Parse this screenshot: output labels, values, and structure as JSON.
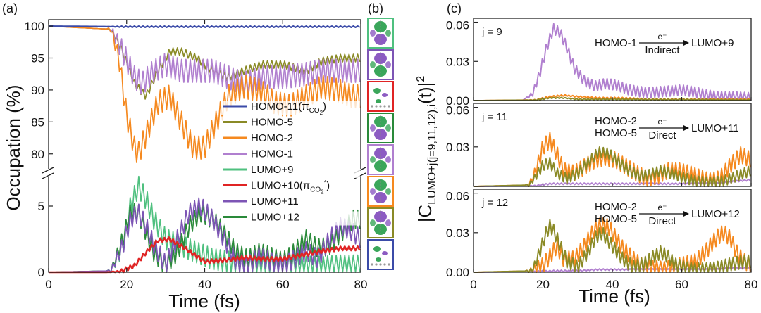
{
  "panel_labels": {
    "a": "(a)",
    "b": "(b)",
    "c": "(c)"
  },
  "colors": {
    "homo11": "#3b4ba8",
    "homo5": "#8a8a26",
    "homo2": "#f5891f",
    "homo1": "#b07fcf",
    "lumo9": "#4fc07f",
    "lumo10": "#e02424",
    "lumo11": "#7d55b5",
    "lumo12": "#2a8a3a"
  },
  "panel_a": {
    "xlabel": "Time (fs)",
    "ylabel": "Occupation (%)",
    "xticks": [
      "0",
      "20",
      "40",
      "60",
      "80"
    ],
    "yticks_top": [
      "80",
      "85",
      "90",
      "95",
      "100"
    ],
    "yticks_bottom": [
      "0",
      "5"
    ]
  },
  "legend": [
    {
      "key": "homo11",
      "label": "HOMO-11(π",
      "sub": "CO",
      "sub2": "2",
      "close": ")"
    },
    {
      "key": "homo5",
      "label": "HOMO-5"
    },
    {
      "key": "homo2",
      "label": "HOMO-2"
    },
    {
      "key": "homo1",
      "label": "HOMO-1"
    },
    {
      "key": "lumo9",
      "label": "LUMO+9"
    },
    {
      "key": "lumo10",
      "label": "LUMO+10(π",
      "sub": "CO",
      "sub2": "2",
      "sup": "*",
      "close": ")"
    },
    {
      "key": "lumo11",
      "label": "LUMO+11"
    },
    {
      "key": "lumo12",
      "label": "LUMO+12"
    }
  ],
  "panel_c": {
    "xlabel": "Time (fs)",
    "ylabel_prefix": "|C",
    "ylabel_sub": "LUMO+j(j=9,11,12),i",
    "ylabel_suffix": "(t)|",
    "ylabel_sup": "2",
    "xticks": [
      "0",
      "20",
      "40",
      "60",
      "80"
    ],
    "yticks": [
      "0.00",
      "0.03",
      "0.06"
    ],
    "subpanels": [
      {
        "j_label": "j = 9",
        "from": [
          "HOMO-1"
        ],
        "electron": "e⁻",
        "mechanism": "Indirect",
        "to": "LUMO+9"
      },
      {
        "j_label": "j = 11",
        "from": [
          "HOMO-2",
          "HOMO-5"
        ],
        "electron": "e⁻",
        "mechanism": "Direct",
        "to": "LUMO+11"
      },
      {
        "j_label": "j = 12",
        "from": [
          "HOMO-2",
          "HOMO-5"
        ],
        "electron": "e⁻",
        "mechanism": "Direct",
        "to": "LUMO+12"
      }
    ]
  },
  "panel_b": {
    "boxes": [
      {
        "name": "orbital-lumo9",
        "border": "#4fc07f",
        "lobe1": "#3aa65a",
        "lobe2": "#8c5bc2"
      },
      {
        "name": "orbital-lumo11",
        "border": "#7d55b5",
        "lobe1": "#8c5bc2",
        "lobe2": "#3aa65a"
      },
      {
        "name": "orbital-lumo10",
        "border": "#e02424",
        "lobe1": "#3aa65a",
        "lobe2": "#8c5bc2"
      },
      {
        "name": "orbital-homo5-a",
        "border": "#2a8a3a",
        "lobe1": "#3aa65a",
        "lobe2": "#8c5bc2"
      },
      {
        "name": "orbital-homo1",
        "border": "#b07fcf",
        "lobe1": "#8c5bc2",
        "lobe2": "#3aa65a"
      },
      {
        "name": "orbital-homo2",
        "border": "#f5891f",
        "lobe1": "#3aa65a",
        "lobe2": "#8c5bc2"
      },
      {
        "name": "orbital-homo5-b",
        "border": "#8a8a26",
        "lobe1": "#8c5bc2",
        "lobe2": "#3aa65a"
      },
      {
        "name": "orbital-homo11",
        "border": "#3b4ba8",
        "lobe1": "#3aa65a",
        "lobe2": "#8c5bc2"
      }
    ]
  },
  "chart_data": [
    {
      "type": "line",
      "panel": "(a)",
      "xlabel": "Time (fs)",
      "ylabel": "Occupation (%)",
      "xlim": [
        0,
        80
      ],
      "ylim_upper": [
        77,
        101
      ],
      "ylim_lower": [
        0,
        7.5
      ],
      "broken_axis": true,
      "series": [
        {
          "name": "HOMO-11(πCO2)",
          "key": "homo11",
          "segment": "upper",
          "x": [
            0,
            20,
            40,
            60,
            80
          ],
          "y": [
            100,
            99.9,
            99.9,
            99.9,
            99.9
          ],
          "osc": 0.1
        },
        {
          "name": "HOMO-5",
          "key": "homo5",
          "segment": "upper",
          "x": [
            0,
            16,
            19,
            22,
            25,
            28,
            31,
            34,
            38,
            42,
            46,
            50,
            55,
            60,
            66,
            70,
            75,
            80
          ],
          "y": [
            100,
            99.5,
            96,
            91,
            89,
            93,
            96,
            96,
            95,
            93,
            92,
            93,
            94,
            94,
            93,
            94.5,
            95,
            95
          ],
          "osc": 0.6
        },
        {
          "name": "HOMO-2",
          "key": "homo2",
          "segment": "upper",
          "x": [
            0,
            16,
            18,
            20,
            22,
            23,
            25,
            28,
            31,
            34,
            37,
            40,
            43,
            46,
            50,
            54,
            58,
            62,
            66,
            70,
            74,
            78,
            80
          ],
          "y": [
            100,
            99.5,
            95,
            86,
            81,
            80,
            83,
            88,
            89,
            85,
            81,
            81,
            85,
            89,
            90.5,
            90,
            88,
            87.5,
            89,
            90.5,
            90,
            89,
            89
          ],
          "osc": 1.8
        },
        {
          "name": "HOMO-1",
          "key": "homo1",
          "segment": "upper",
          "x": [
            0,
            16,
            19,
            22,
            24,
            27,
            30,
            34,
            38,
            42,
            46,
            50,
            55,
            60,
            66,
            70,
            75,
            80
          ],
          "y": [
            100,
            99.5,
            96,
            92,
            91,
            93,
            94,
            93,
            93,
            93,
            92,
            91,
            92,
            92,
            92.5,
            93,
            93,
            93
          ],
          "osc": 1.8
        },
        {
          "name": "LUMO+9",
          "key": "lumo9",
          "segment": "lower",
          "x": [
            0,
            16,
            19,
            21,
            23,
            25,
            27,
            30,
            34,
            38,
            42,
            46,
            50,
            55,
            60,
            66,
            70,
            75,
            80
          ],
          "y": [
            0,
            0.1,
            2,
            5,
            6.5,
            5.5,
            4,
            2.5,
            2,
            1.5,
            1,
            0.8,
            0.6,
            0.5,
            0.6,
            0.4,
            0.4,
            0.5,
            0.5
          ],
          "osc": 0.8
        },
        {
          "name": "LUMO+10(πCO2*)",
          "key": "lumo10",
          "segment": "lower",
          "x": [
            0,
            18,
            22,
            25,
            28,
            31,
            35,
            40,
            45,
            50,
            55,
            60,
            65,
            70,
            75,
            80
          ],
          "y": [
            0,
            0,
            0.5,
            1.5,
            2.4,
            2.5,
            1.8,
            0.8,
            0.9,
            1.1,
            1.0,
            1.0,
            1.3,
            1.6,
            1.8,
            1.8
          ],
          "osc": 0.15
        },
        {
          "name": "LUMO+11",
          "key": "lumo11",
          "segment": "lower",
          "x": [
            0,
            16,
            19,
            21,
            23,
            25,
            27,
            30,
            33,
            36,
            39,
            42,
            45,
            48,
            51,
            54,
            57,
            60,
            63,
            66,
            69,
            72,
            75,
            78,
            80
          ],
          "y": [
            0,
            0.1,
            2,
            4,
            4.5,
            3.5,
            2,
            0.6,
            2.5,
            4.5,
            5,
            4,
            2.5,
            0.8,
            0.5,
            1.2,
            0.8,
            0.5,
            1.0,
            1.6,
            1.0,
            2.5,
            3.5,
            3,
            2.5
          ],
          "osc": 0.7
        },
        {
          "name": "LUMO+12",
          "key": "lumo12",
          "segment": "lower",
          "x": [
            0,
            16,
            19,
            21,
            23,
            25,
            27,
            30,
            33,
            36,
            39,
            42,
            45,
            48,
            51,
            54,
            57,
            60,
            63,
            66,
            69,
            72,
            75,
            78,
            80
          ],
          "y": [
            0,
            0.1,
            2.5,
            4.5,
            4.5,
            3,
            1.5,
            0.5,
            1.5,
            3.5,
            4.5,
            4,
            3,
            1.5,
            1.0,
            1.5,
            1.2,
            0.8,
            1.5,
            2.5,
            1.8,
            2.0,
            3.0,
            4.0,
            4.0
          ],
          "osc": 0.7
        }
      ]
    },
    {
      "type": "line",
      "panel": "(c) j = 9",
      "xlim": [
        0,
        80
      ],
      "ylim": [
        0,
        0.063
      ],
      "series": [
        {
          "key": "homo1",
          "x": [
            0,
            14,
            17,
            19,
            21,
            23,
            25,
            27,
            29,
            32,
            35,
            38,
            41,
            45,
            50,
            55,
            60,
            63,
            66,
            70,
            75,
            80
          ],
          "y": [
            0,
            0,
            0.005,
            0.02,
            0.04,
            0.055,
            0.052,
            0.04,
            0.025,
            0.015,
            0.011,
            0.013,
            0.012,
            0.008,
            0.006,
            0.007,
            0.008,
            0.007,
            0.005,
            0.003,
            0.003,
            0.002
          ],
          "osc": 0.004
        },
        {
          "key": "homo2",
          "x": [
            0,
            18,
            22,
            26,
            30,
            36,
            42,
            50,
            60,
            70,
            80
          ],
          "y": [
            0,
            0.0005,
            0.003,
            0.004,
            0.003,
            0.002,
            0.002,
            0.001,
            0.001,
            0.001,
            0.001
          ],
          "osc": 0.0006
        },
        {
          "key": "homo5",
          "x": [
            0,
            18,
            22,
            26,
            30,
            36,
            42,
            50,
            60,
            70,
            80
          ],
          "y": [
            0,
            0.0004,
            0.002,
            0.002,
            0.001,
            0.001,
            0.001,
            0.0008,
            0.0008,
            0.0006,
            0.0005
          ],
          "osc": 0.0004
        }
      ]
    },
    {
      "type": "line",
      "panel": "(c) j = 11",
      "xlim": [
        0,
        80
      ],
      "ylim": [
        0,
        0.063
      ],
      "series": [
        {
          "key": "homo2",
          "x": [
            0,
            16,
            18,
            20,
            22,
            24,
            26,
            29,
            32,
            35,
            38,
            41,
            44,
            47,
            50,
            53,
            56,
            59,
            62,
            65,
            68,
            71,
            74,
            77,
            80
          ],
          "y": [
            0,
            0.001,
            0.012,
            0.03,
            0.035,
            0.025,
            0.012,
            0.01,
            0.015,
            0.02,
            0.022,
            0.02,
            0.015,
            0.01,
            0.006,
            0.008,
            0.012,
            0.012,
            0.01,
            0.007,
            0.004,
            0.006,
            0.016,
            0.024,
            0.02
          ],
          "osc": 0.006
        },
        {
          "key": "homo5",
          "x": [
            0,
            16,
            18,
            20,
            22,
            24,
            27,
            30,
            33,
            36,
            39,
            42,
            45,
            48,
            51,
            54,
            57,
            60,
            64,
            68,
            72,
            76,
            80
          ],
          "y": [
            0,
            0.001,
            0.008,
            0.016,
            0.018,
            0.01,
            0.006,
            0.01,
            0.018,
            0.026,
            0.025,
            0.018,
            0.012,
            0.008,
            0.009,
            0.012,
            0.01,
            0.007,
            0.004,
            0.003,
            0.004,
            0.008,
            0.012
          ],
          "osc": 0.004
        },
        {
          "key": "homo1",
          "x": [
            0,
            18,
            22,
            28,
            34,
            40,
            50,
            60,
            70,
            76,
            80
          ],
          "y": [
            0,
            0.0005,
            0.002,
            0.002,
            0.002,
            0.002,
            0.002,
            0.002,
            0.002,
            0.004,
            0.005
          ],
          "osc": 0.0006
        }
      ]
    },
    {
      "type": "line",
      "panel": "(c) j = 12",
      "xlim": [
        0,
        80
      ],
      "ylim": [
        0,
        0.063
      ],
      "series": [
        {
          "key": "homo2",
          "x": [
            0,
            17,
            20,
            22,
            24,
            26,
            29,
            32,
            35,
            37,
            39,
            41,
            43,
            46,
            49,
            52,
            55,
            58,
            61,
            64,
            67,
            70,
            72,
            74,
            76,
            78,
            80
          ],
          "y": [
            0,
            0.001,
            0.005,
            0.012,
            0.02,
            0.01,
            0.01,
            0.02,
            0.033,
            0.036,
            0.034,
            0.026,
            0.018,
            0.01,
            0.004,
            0.003,
            0.002,
            0.004,
            0.006,
            0.008,
            0.016,
            0.026,
            0.03,
            0.026,
            0.014,
            0.008,
            0.006
          ],
          "osc": 0.006
        },
        {
          "key": "homo5",
          "x": [
            0,
            17,
            19,
            21,
            22,
            23,
            25,
            27,
            30,
            33,
            35,
            37,
            40,
            43,
            46,
            49,
            52,
            54,
            56,
            58,
            61,
            64,
            67,
            70,
            74,
            78,
            80
          ],
          "y": [
            0,
            0.001,
            0.015,
            0.03,
            0.035,
            0.032,
            0.02,
            0.008,
            0.004,
            0.015,
            0.026,
            0.03,
            0.02,
            0.01,
            0.004,
            0.006,
            0.012,
            0.015,
            0.012,
            0.006,
            0.003,
            0.002,
            0.002,
            0.003,
            0.006,
            0.008,
            0.008
          ],
          "osc": 0.005
        },
        {
          "key": "homo1",
          "x": [
            0,
            18,
            24,
            30,
            36,
            42,
            50,
            60,
            70,
            74,
            80
          ],
          "y": [
            0,
            0.0005,
            0.001,
            0.001,
            0.002,
            0.002,
            0.002,
            0.002,
            0.002,
            0.003,
            0.003
          ],
          "osc": 0.0006
        }
      ]
    }
  ]
}
